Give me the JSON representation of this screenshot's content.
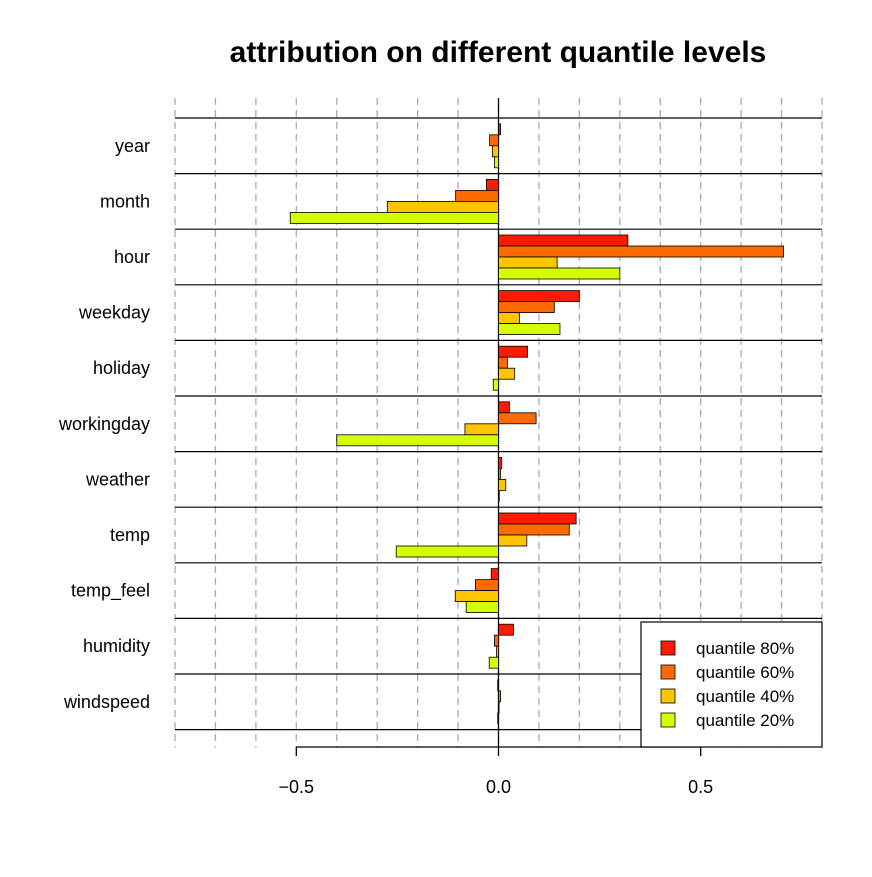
{
  "chart_data": {
    "type": "bar",
    "orientation": "horizontal",
    "title": "attribution on different quantile levels",
    "xlabel": "",
    "ylabel": "",
    "xlim": [
      -0.8,
      0.8
    ],
    "xticks": [
      -0.5,
      0.0,
      0.5
    ],
    "xtick_labels": [
      "−0.5",
      "0.0",
      "0.5"
    ],
    "grid": true,
    "grid_step": 0.1,
    "legend_position": "bottom-right",
    "categories": [
      "year",
      "month",
      "hour",
      "weekday",
      "holiday",
      "workingday",
      "weather",
      "temp",
      "temp_feel",
      "humidity",
      "windspeed"
    ],
    "series": [
      {
        "name": "quantile 80%",
        "color": "#ff1a00",
        "values": [
          0.005,
          -0.03,
          0.32,
          0.2,
          0.072,
          0.027,
          0.008,
          0.192,
          -0.018,
          0.037,
          -0.002
        ]
      },
      {
        "name": "quantile 60%",
        "color": "#ff6a00",
        "values": [
          -0.022,
          -0.106,
          0.705,
          0.138,
          0.022,
          0.093,
          0.005,
          0.175,
          -0.057,
          -0.01,
          0.005
        ]
      },
      {
        "name": "quantile 40%",
        "color": "#ffc400",
        "values": [
          -0.015,
          -0.275,
          0.145,
          0.052,
          0.04,
          -0.083,
          0.018,
          0.07,
          -0.107,
          -0.005,
          0.0
        ]
      },
      {
        "name": "quantile 20%",
        "color": "#d4ff00",
        "values": [
          -0.01,
          -0.515,
          0.3,
          0.152,
          -0.013,
          -0.4,
          0.002,
          -0.253,
          -0.08,
          -0.023,
          -0.002
        ]
      }
    ]
  }
}
